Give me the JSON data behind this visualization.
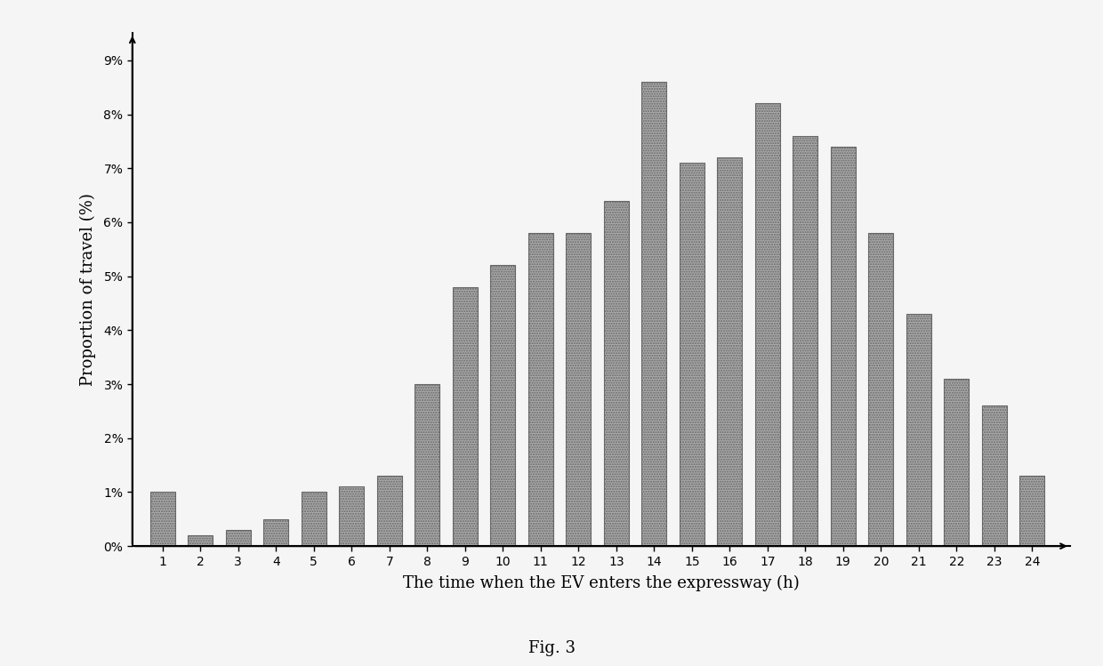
{
  "hours": [
    1,
    2,
    3,
    4,
    5,
    6,
    7,
    8,
    9,
    10,
    11,
    12,
    13,
    14,
    15,
    16,
    17,
    18,
    19,
    20,
    21,
    22,
    23,
    24
  ],
  "values": [
    1.0,
    0.2,
    0.3,
    0.5,
    1.0,
    1.1,
    1.3,
    3.0,
    4.8,
    5.2,
    5.8,
    5.8,
    6.4,
    8.6,
    7.1,
    7.2,
    8.2,
    7.6,
    7.4,
    5.8,
    4.3,
    3.1,
    2.6,
    1.3
  ],
  "bar_color": "#aaaaaa",
  "xlabel": "The time when the EV enters the expressway (h)",
  "ylabel": "Proportion of travel (%)",
  "yticks": [
    0,
    1,
    2,
    3,
    4,
    5,
    6,
    7,
    8,
    9
  ],
  "ytick_labels": [
    "0%",
    "1%",
    "2%",
    "3%",
    "4%",
    "5%",
    "6%",
    "7%",
    "8%",
    "9%"
  ],
  "ylim": [
    0,
    9.5
  ],
  "caption": "Fig. 3",
  "background_color": "#f5f5f5",
  "figure_width": 12.4,
  "figure_height": 7.49,
  "dpi": 100
}
